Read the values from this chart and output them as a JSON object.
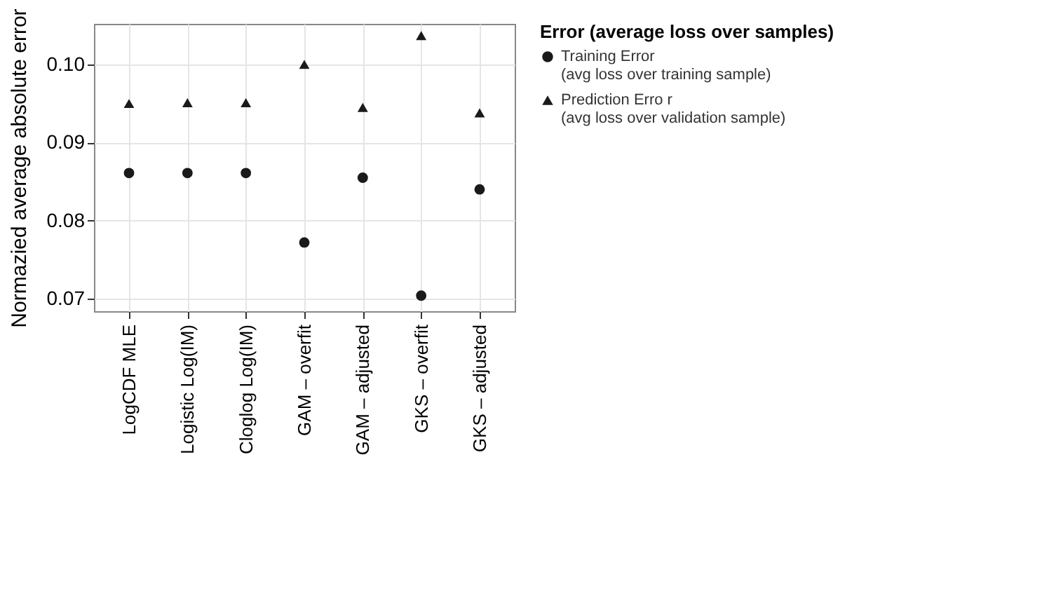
{
  "chart_data": {
    "type": "scatter",
    "ylabel": "Normazied average absolute error",
    "legend_title": "Error (average loss over samples)",
    "categories": [
      "LogCDF MLE",
      "Logistic Log(IM)",
      "Cloglog Log(IM)",
      "GAM – overfit",
      "GAM – adjusted",
      "GKS – overfit",
      "GKS – adjusted"
    ],
    "series": [
      {
        "name": "Training Error\n(avg loss over training sample)",
        "color": "#1a1a1a",
        "marker": "circle",
        "values": [
          0.0861,
          0.0861,
          0.0861,
          0.0772,
          0.0855,
          0.0704,
          0.084
        ]
      },
      {
        "name": "Prediction Erro   r\n(avg loss over validation sample)",
        "color": "#1a1a1a",
        "marker": "triangle",
        "values": [
          0.095,
          0.0951,
          0.0951,
          0.1,
          0.0945,
          0.1037,
          0.0938
        ]
      }
    ],
    "ylim": [
      0.0684,
      0.1052
    ],
    "yticks": [
      {
        "value": 0.07,
        "label": "0.07"
      },
      {
        "value": 0.08,
        "label": "0.08"
      },
      {
        "value": 0.09,
        "label": "0.09"
      },
      {
        "value": 0.1,
        "label": "0.10"
      }
    ],
    "grid": true,
    "legend": "right"
  }
}
